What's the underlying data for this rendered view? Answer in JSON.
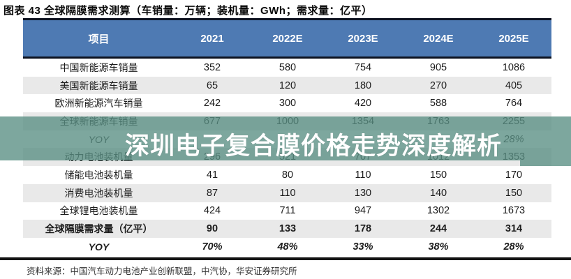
{
  "colors": {
    "header_bg": "#4e7ab3",
    "accent_line": "#0d1220",
    "row_stripe": "#e9e9e9",
    "watermark_band": "#588e83",
    "watermark_text": "#ffffff"
  },
  "figure": {
    "title": "图表 43 全球隔膜需求测算（车销量：万辆；装机量：GWh；需求量：亿平）",
    "source": "资料来源：中国汽车动力电池产业创新联盟，中汽协，华安证券研究所"
  },
  "watermark": {
    "text": "深圳电子复合膜价格走势深度解析"
  },
  "chart_data": {
    "type": "table",
    "columns": [
      "项目",
      "2021",
      "2022E",
      "2023E",
      "2024E",
      "2025E"
    ],
    "rows": [
      {
        "label": "中国新能源车销量",
        "values": [
          "352",
          "580",
          "754",
          "905",
          "1086"
        ],
        "shaded": false,
        "bold": false,
        "italic": false
      },
      {
        "label": "美国新能源车销量",
        "values": [
          "65",
          "120",
          "180",
          "270",
          "405"
        ],
        "shaded": true,
        "bold": false,
        "italic": false
      },
      {
        "label": "欧洲新能源汽车销量",
        "values": [
          "242",
          "300",
          "420",
          "588",
          "764"
        ],
        "shaded": false,
        "bold": false,
        "italic": false
      },
      {
        "label": "全球新能源车销量",
        "values": [
          "677",
          "1000",
          "1354",
          "1763",
          "2255"
        ],
        "shaded": true,
        "bold": false,
        "italic": false
      },
      {
        "label": "YOY",
        "values": [
          "",
          "",
          "",
          "",
          "28%"
        ],
        "shaded": false,
        "bold": false,
        "italic": true
      },
      {
        "label": "动力电池装机量",
        "values": [
          "296",
          "521",
          "707",
          "1012",
          "1353"
        ],
        "shaded": true,
        "bold": false,
        "italic": false
      },
      {
        "label": "储能电池装机量",
        "values": [
          "41",
          "80",
          "110",
          "150",
          "170"
        ],
        "shaded": false,
        "bold": false,
        "italic": false
      },
      {
        "label": "消费电池装机量",
        "values": [
          "87",
          "110",
          "130",
          "140",
          "150"
        ],
        "shaded": true,
        "bold": false,
        "italic": false
      },
      {
        "label": "全球锂电池装机量",
        "values": [
          "424",
          "711",
          "947",
          "1302",
          "1673"
        ],
        "shaded": false,
        "bold": false,
        "italic": false
      },
      {
        "label": "全球隔膜需求量（亿平）",
        "values": [
          "90",
          "133",
          "178",
          "244",
          "314"
        ],
        "shaded": true,
        "bold": true,
        "italic": false
      },
      {
        "label": "YOY",
        "values": [
          "70%",
          "48%",
          "33%",
          "38%",
          "28%"
        ],
        "shaded": false,
        "bold": true,
        "italic": true
      }
    ]
  }
}
